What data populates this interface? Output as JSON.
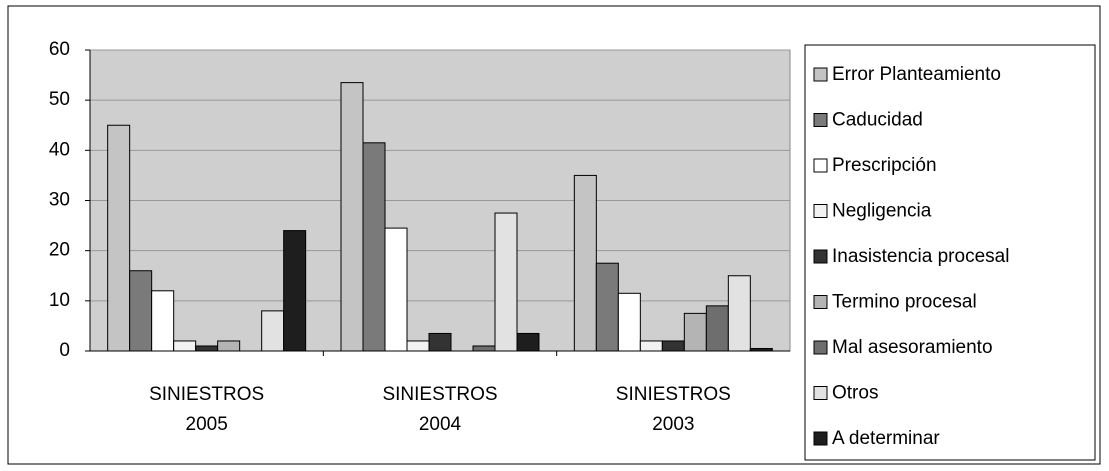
{
  "chart_data": {
    "type": "bar",
    "categories": [
      "SINIESTROS 2005",
      "SINIESTROS 2004",
      "SINIESTROS 2003"
    ],
    "series": [
      {
        "name": "Error Planteamiento",
        "color": "#c4c4c4",
        "values": [
          45,
          53.5,
          35
        ]
      },
      {
        "name": "Caducidad",
        "color": "#7a7a7a",
        "values": [
          16,
          41.5,
          17.5
        ]
      },
      {
        "name": "Prescripción",
        "color": "#ffffff",
        "values": [
          12,
          24.5,
          11.5
        ]
      },
      {
        "name": "Negligencia",
        "color": "#f2f2f2",
        "values": [
          2,
          2,
          2
        ]
      },
      {
        "name": "Inasistencia procesal",
        "color": "#333333",
        "values": [
          1,
          3.5,
          2
        ]
      },
      {
        "name": "Termino procesal",
        "color": "#b4b4b4",
        "values": [
          2,
          0,
          7.5
        ]
      },
      {
        "name": "Mal asesoramiento",
        "color": "#6e6e6e",
        "values": [
          0,
          1,
          9
        ]
      },
      {
        "name": "Otros",
        "color": "#e2e2e2",
        "values": [
          8,
          27.5,
          15
        ]
      },
      {
        "name": "A determinar",
        "color": "#1e1e1e",
        "values": [
          24,
          3.5,
          0.5
        ]
      }
    ],
    "ylim": [
      0,
      60
    ],
    "yticks": [
      0,
      10,
      20,
      30,
      40,
      50,
      60
    ],
    "grid": true,
    "legend": "right"
  }
}
